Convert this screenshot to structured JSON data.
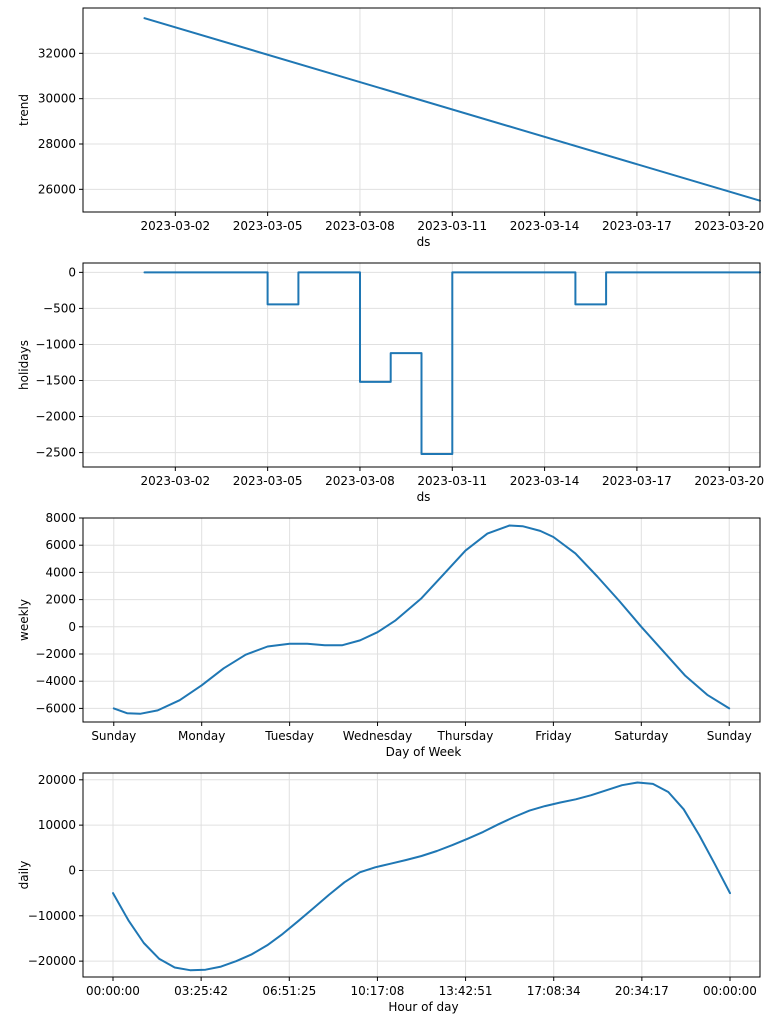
{
  "colors": {
    "series": "#1f77b4",
    "grid": "#e0e0e0",
    "axes": "#000000"
  },
  "chart_data": [
    {
      "type": "line",
      "name": "trend",
      "title": "",
      "xlabel": "ds",
      "ylabel": "trend",
      "grid": true,
      "x_kind": "date",
      "xlim": [
        "2023-02-27",
        "2023-03-21"
      ],
      "ylim": [
        25000,
        34000
      ],
      "x_ticks": [
        "2023-03-02",
        "2023-03-05",
        "2023-03-08",
        "2023-03-11",
        "2023-03-14",
        "2023-03-17",
        "2023-03-20"
      ],
      "y_ticks": [
        26000,
        28000,
        30000,
        32000
      ],
      "series": [
        {
          "x": [
            "2023-03-01",
            "2023-03-21"
          ],
          "y": [
            33550,
            25500
          ]
        }
      ]
    },
    {
      "type": "line",
      "name": "holidays",
      "title": "",
      "xlabel": "ds",
      "ylabel": "holidays",
      "grid": true,
      "x_kind": "date",
      "xlim": [
        "2023-02-27",
        "2023-03-21"
      ],
      "ylim": [
        -2700,
        130
      ],
      "x_ticks": [
        "2023-03-02",
        "2023-03-05",
        "2023-03-08",
        "2023-03-11",
        "2023-03-14",
        "2023-03-17",
        "2023-03-20"
      ],
      "y_ticks": [
        0,
        -500,
        -1000,
        -1500,
        -2000,
        -2500
      ],
      "series": [
        {
          "x": [
            "2023-03-01",
            "2023-03-05",
            "2023-03-05",
            "2023-03-06",
            "2023-03-06",
            "2023-03-08",
            "2023-03-08",
            "2023-03-09",
            "2023-03-09",
            "2023-03-10",
            "2023-03-10",
            "2023-03-11",
            "2023-03-11",
            "2023-03-15",
            "2023-03-15",
            "2023-03-16",
            "2023-03-16",
            "2023-03-21"
          ],
          "y": [
            0,
            0,
            -445,
            -445,
            0,
            0,
            -1520,
            -1520,
            -1120,
            -1120,
            -2520,
            -2520,
            0,
            0,
            -445,
            -445,
            0,
            0
          ]
        }
      ]
    },
    {
      "type": "line",
      "name": "weekly",
      "title": "",
      "xlabel": "Day of Week",
      "ylabel": "weekly",
      "grid": true,
      "x_kind": "category",
      "categories": [
        "Sunday",
        "Monday",
        "Tuesday",
        "Wednesday",
        "Thursday",
        "Friday",
        "Saturday",
        "Sunday"
      ],
      "xlim": [
        -0.35,
        7.35
      ],
      "ylim": [
        -7000,
        8000
      ],
      "y_ticks": [
        8000,
        6000,
        4000,
        2000,
        0,
        -2000,
        -4000,
        -6000
      ],
      "series": [
        {
          "x": [
            0,
            0.15,
            0.3,
            0.5,
            0.75,
            1.0,
            1.25,
            1.5,
            1.75,
            2.0,
            2.2,
            2.4,
            2.6,
            2.8,
            3.0,
            3.2,
            3.5,
            3.75,
            4.0,
            4.25,
            4.5,
            4.65,
            4.85,
            5.0,
            5.25,
            5.5,
            5.75,
            6.0,
            6.25,
            6.5,
            6.75,
            7.0
          ],
          "y": [
            -6000,
            -6350,
            -6400,
            -6150,
            -5400,
            -4300,
            -3050,
            -2050,
            -1450,
            -1250,
            -1250,
            -1350,
            -1350,
            -1000,
            -400,
            450,
            2100,
            3850,
            5600,
            6850,
            7450,
            7400,
            7050,
            6600,
            5400,
            3700,
            1900,
            0,
            -1800,
            -3600,
            -5000,
            -6000
          ]
        }
      ]
    },
    {
      "type": "line",
      "name": "daily",
      "title": "",
      "xlabel": "Hour of day",
      "ylabel": "daily",
      "grid": true,
      "x_kind": "time",
      "xlim": [
        -4200,
        90600
      ],
      "ylim": [
        -23500,
        21500
      ],
      "x_ticks": [
        {
          "label": "00:00:00",
          "value": 0
        },
        {
          "label": "03:25:42",
          "value": 12342
        },
        {
          "label": "06:51:25",
          "value": 24685
        },
        {
          "label": "10:17:08",
          "value": 37028
        },
        {
          "label": "13:42:51",
          "value": 49371
        },
        {
          "label": "17:08:34",
          "value": 61714
        },
        {
          "label": "20:34:17",
          "value": 74057
        },
        {
          "label": "00:00:00",
          "value": 86400
        }
      ],
      "y_ticks": [
        20000,
        10000,
        0,
        -10000,
        -20000
      ],
      "series": [
        {
          "x": [
            0,
            2160,
            4320,
            6480,
            8640,
            10800,
            12960,
            15120,
            17280,
            19440,
            21600,
            23760,
            25920,
            28080,
            30240,
            32400,
            34560,
            36720,
            38880,
            41040,
            43200,
            45360,
            47520,
            49680,
            51840,
            54000,
            56160,
            58320,
            60480,
            62640,
            64800,
            66960,
            69120,
            71280,
            73440,
            75600,
            77760,
            79920,
            82080,
            84240,
            86400
          ],
          "y": [
            -5000,
            -11000,
            -16000,
            -19500,
            -21400,
            -22000,
            -21900,
            -21200,
            -20000,
            -18500,
            -16500,
            -14000,
            -11200,
            -8300,
            -5400,
            -2600,
            -400,
            700,
            1500,
            2300,
            3200,
            4300,
            5600,
            7000,
            8500,
            10200,
            11800,
            13200,
            14200,
            15000,
            15700,
            16600,
            17700,
            18800,
            19400,
            19100,
            17300,
            13500,
            7800,
            1500,
            -5000
          ]
        }
      ]
    }
  ]
}
